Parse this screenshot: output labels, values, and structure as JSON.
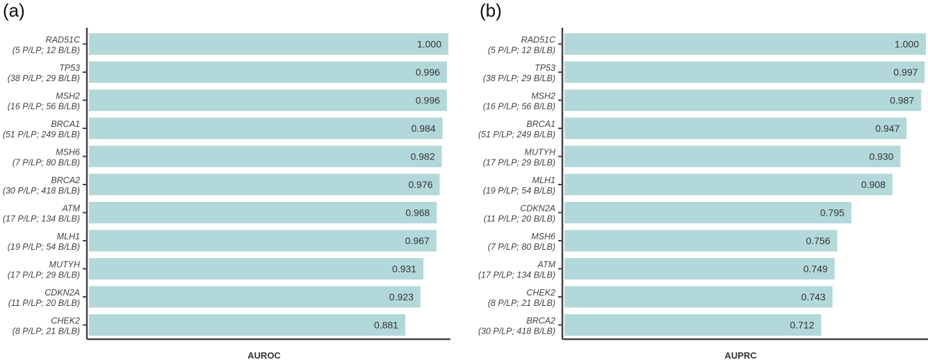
{
  "chart_data": [
    {
      "type": "bar",
      "orientation": "horizontal",
      "panel_label": "(a)",
      "xlabel": "AUROC",
      "xlim": [
        0,
        1
      ],
      "bar_color": "#b3d8da",
      "categories": [
        {
          "gene": "RAD51C",
          "counts": "(5 P/LP; 12 B/LB)"
        },
        {
          "gene": "TP53",
          "counts": "(38 P/LP; 29 B/LB)"
        },
        {
          "gene": "MSH2",
          "counts": "(16 P/LP; 56 B/LB)"
        },
        {
          "gene": "BRCA1",
          "counts": "(51 P/LP; 249 B/LB)"
        },
        {
          "gene": "MSH6",
          "counts": "(7 P/LP; 80 B/LB)"
        },
        {
          "gene": "BRCA2",
          "counts": "(30 P/LP; 418 B/LB)"
        },
        {
          "gene": "ATM",
          "counts": "(17 P/LP; 134 B/LB)"
        },
        {
          "gene": "MLH1",
          "counts": "(19 P/LP; 54 B/LB)"
        },
        {
          "gene": "MUTYH",
          "counts": "(17 P/LP; 29 B/LB)"
        },
        {
          "gene": "CDKN2A",
          "counts": "(11 P/LP; 20 B/LB)"
        },
        {
          "gene": "CHEK2",
          "counts": "(8 P/LP; 21 B/LB)"
        }
      ],
      "values": [
        1.0,
        0.996,
        0.996,
        0.984,
        0.982,
        0.976,
        0.968,
        0.967,
        0.931,
        0.923,
        0.881
      ],
      "value_labels": [
        "1.000",
        "0.996",
        "0.996",
        "0.984",
        "0.982",
        "0.976",
        "0.968",
        "0.967",
        "0.931",
        "0.923",
        "0.881"
      ]
    },
    {
      "type": "bar",
      "orientation": "horizontal",
      "panel_label": "(b)",
      "xlabel": "AUPRC",
      "xlim": [
        0,
        1
      ],
      "bar_color": "#b3d8da",
      "categories": [
        {
          "gene": "RAD51C",
          "counts": "(5 P/LP; 12 B/LB)"
        },
        {
          "gene": "TP53",
          "counts": "(38 P/LP; 29 B/LB)"
        },
        {
          "gene": "MSH2",
          "counts": "(16 P/LP; 56 B/LB)"
        },
        {
          "gene": "BRCA1",
          "counts": "(51 P/LP; 249 B/LB)"
        },
        {
          "gene": "MUTYH",
          "counts": "(17 P/LP; 29 B/LB)"
        },
        {
          "gene": "MLH1",
          "counts": "(19 P/LP; 54 B/LB)"
        },
        {
          "gene": "CDKN2A",
          "counts": "(11 P/LP; 20 B/LB)"
        },
        {
          "gene": "MSH6",
          "counts": "(7 P/LP; 80 B/LB)"
        },
        {
          "gene": "ATM",
          "counts": "(17 P/LP; 134 B/LB)"
        },
        {
          "gene": "CHEK2",
          "counts": "(8 P/LP; 21 B/LB)"
        },
        {
          "gene": "BRCA2",
          "counts": "(30 P/LP; 418 B/LB)"
        }
      ],
      "values": [
        1.0,
        0.997,
        0.987,
        0.947,
        0.93,
        0.908,
        0.795,
        0.756,
        0.749,
        0.743,
        0.712
      ],
      "value_labels": [
        "1.000",
        "0.997",
        "0.987",
        "0.947",
        "0.930",
        "0.908",
        "0.795",
        "0.756",
        "0.749",
        "0.743",
        "0.712"
      ]
    }
  ]
}
